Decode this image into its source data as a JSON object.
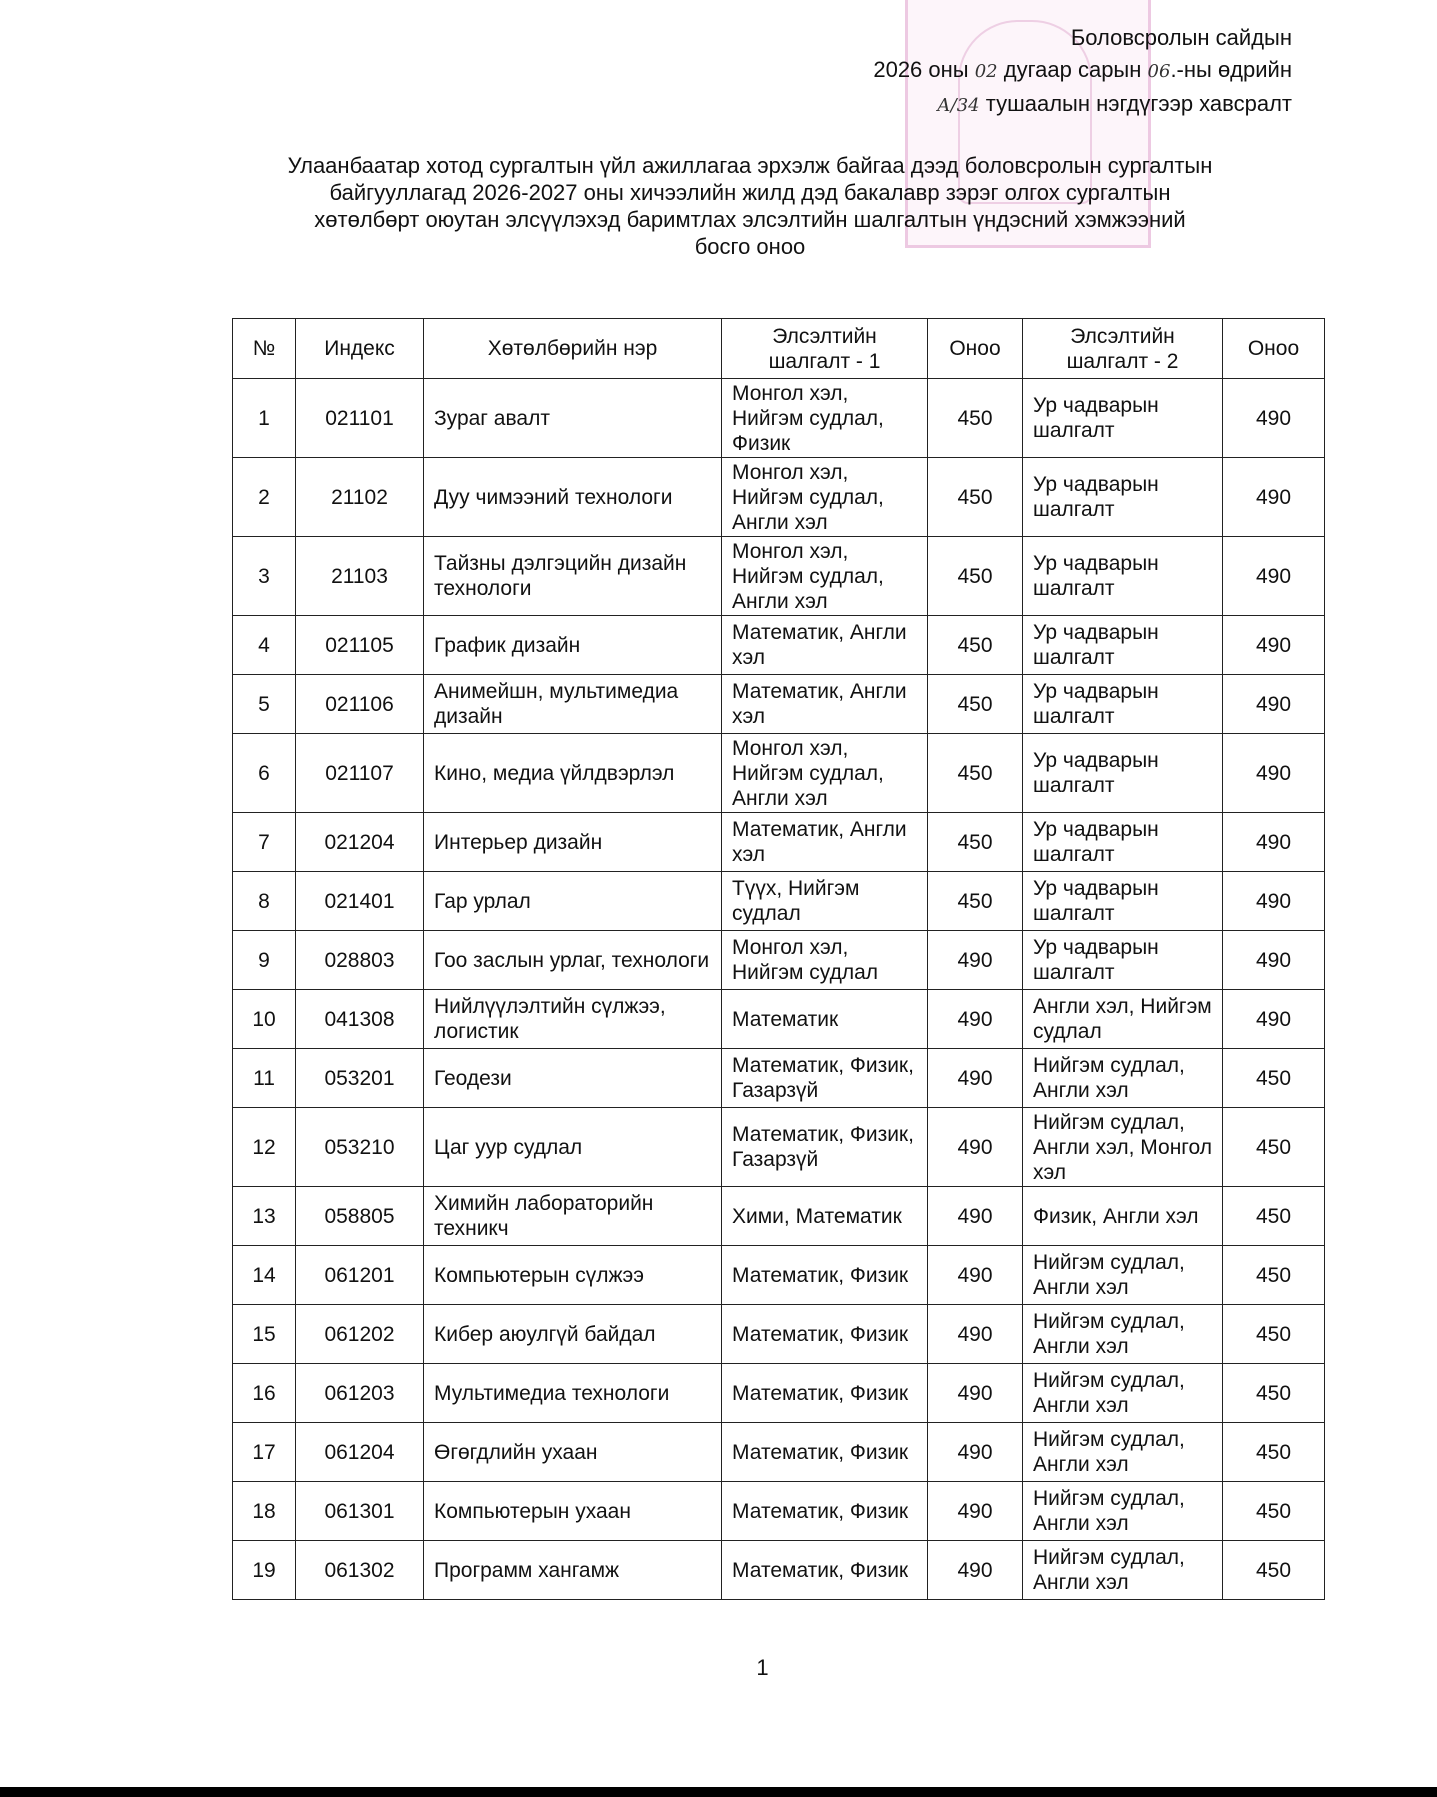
{
  "header": {
    "line1": "Боловсролын сайдын",
    "line2_pre": "2026 оны",
    "line2_month": "02",
    "line2_mid": "дугаар сарын",
    "line2_day": "06",
    "line2_post": ".-ны өдрийн",
    "line3_order": "А/34",
    "line3_post": "тушаалын нэгдүгээр хавсралт"
  },
  "title": {
    "line1": "Улаанбаатар хотод сургалтын үйл ажиллагаа эрхэлж байгаа дээд боловсролын сургалтын",
    "line2": "байгууллагад 2026-2027 оны хичээлийн жилд дэд бакалавр зэрэг олгох сургалтын",
    "line3": "хөтөлбөрт оюутан элсүүлэхэд баримтлах элсэлтийн шалгалтын үндэсний хэмжээний",
    "line4": "босго оноо"
  },
  "table": {
    "columns": [
      "№",
      "Индекс",
      "Хөтөлбөрийн нэр",
      "Элсэлтийн шалгалт - 1",
      "Оноо",
      "Элсэлтийн шалгалт - 2",
      "Оноо"
    ],
    "rows": [
      [
        "1",
        "021101",
        "Зураг авалт",
        "Монгол хэл, Нийгэм судлал, Физик",
        "450",
        "Ур чадварын шалгалт",
        "490"
      ],
      [
        "2",
        "21102",
        "Дуу чимээний технологи",
        "Монгол хэл, Нийгэм судлал, Англи хэл",
        "450",
        "Ур чадварын шалгалт",
        "490"
      ],
      [
        "3",
        "21103",
        "Тайзны дэлгэцийн дизайн технологи",
        "Монгол хэл, Нийгэм судлал, Англи хэл",
        "450",
        "Ур чадварын шалгалт",
        "490"
      ],
      [
        "4",
        "021105",
        "График дизайн",
        "Математик, Англи хэл",
        "450",
        "Ур чадварын шалгалт",
        "490"
      ],
      [
        "5",
        "021106",
        "Анимейшн, мультимедиа дизайн",
        "Математик, Англи хэл",
        "450",
        "Ур чадварын шалгалт",
        "490"
      ],
      [
        "6",
        "021107",
        "Кино, медиа үйлдвэрлэл",
        "Монгол хэл, Нийгэм судлал, Англи хэл",
        "450",
        "Ур чадварын шалгалт",
        "490"
      ],
      [
        "7",
        "021204",
        "Интерьер дизайн",
        "Математик, Англи хэл",
        "450",
        "Ур чадварын шалгалт",
        "490"
      ],
      [
        "8",
        "021401",
        "Гар урлал",
        "Түүх, Нийгэм судлал",
        "450",
        "Ур чадварын шалгалт",
        "490"
      ],
      [
        "9",
        "028803",
        "Гоо заслын урлаг, технологи",
        "Монгол хэл, Нийгэм судлал",
        "490",
        "Ур чадварын шалгалт",
        "490"
      ],
      [
        "10",
        "041308",
        "Нийлүүлэлтийн сүлжээ, логистик",
        "Математик",
        "490",
        "Англи хэл, Нийгэм судлал",
        "490"
      ],
      [
        "11",
        "053201",
        "Геодези",
        "Математик, Физик, Газарзүй",
        "490",
        "Нийгэм судлал, Англи хэл",
        "450"
      ],
      [
        "12",
        "053210",
        "Цаг уур судлал",
        "Математик, Физик, Газарзүй",
        "490",
        "Нийгэм судлал, Англи хэл, Монгол хэл",
        "450"
      ],
      [
        "13",
        "058805",
        "Химийн лабораторийн техникч",
        "Хими, Математик",
        "490",
        "Физик, Англи хэл",
        "450"
      ],
      [
        "14",
        "061201",
        "Компьютерын сүлжээ",
        "Математик, Физик",
        "490",
        "Нийгэм судлал, Англи хэл",
        "450"
      ],
      [
        "15",
        "061202",
        "Кибер аюулгүй байдал",
        "Математик, Физик",
        "490",
        "Нийгэм судлал, Англи хэл",
        "450"
      ],
      [
        "16",
        "061203",
        "Мультимедиа технологи",
        "Математик, Физик",
        "490",
        "Нийгэм судлал, Англи хэл",
        "450"
      ],
      [
        "17",
        "061204",
        "Өгөгдлийн ухаан",
        "Математик, Физик",
        "490",
        "Нийгэм судлал, Англи хэл",
        "450"
      ],
      [
        "18",
        "061301",
        "Компьютерын ухаан",
        "Математик, Физик",
        "490",
        "Нийгэм судлал, Англи хэл",
        "450"
      ],
      [
        "19",
        "061302",
        "Программ хангамж",
        "Математик, Физик",
        "490",
        "Нийгэм судлал, Англи хэл",
        "450"
      ]
    ]
  },
  "page_number": "1"
}
